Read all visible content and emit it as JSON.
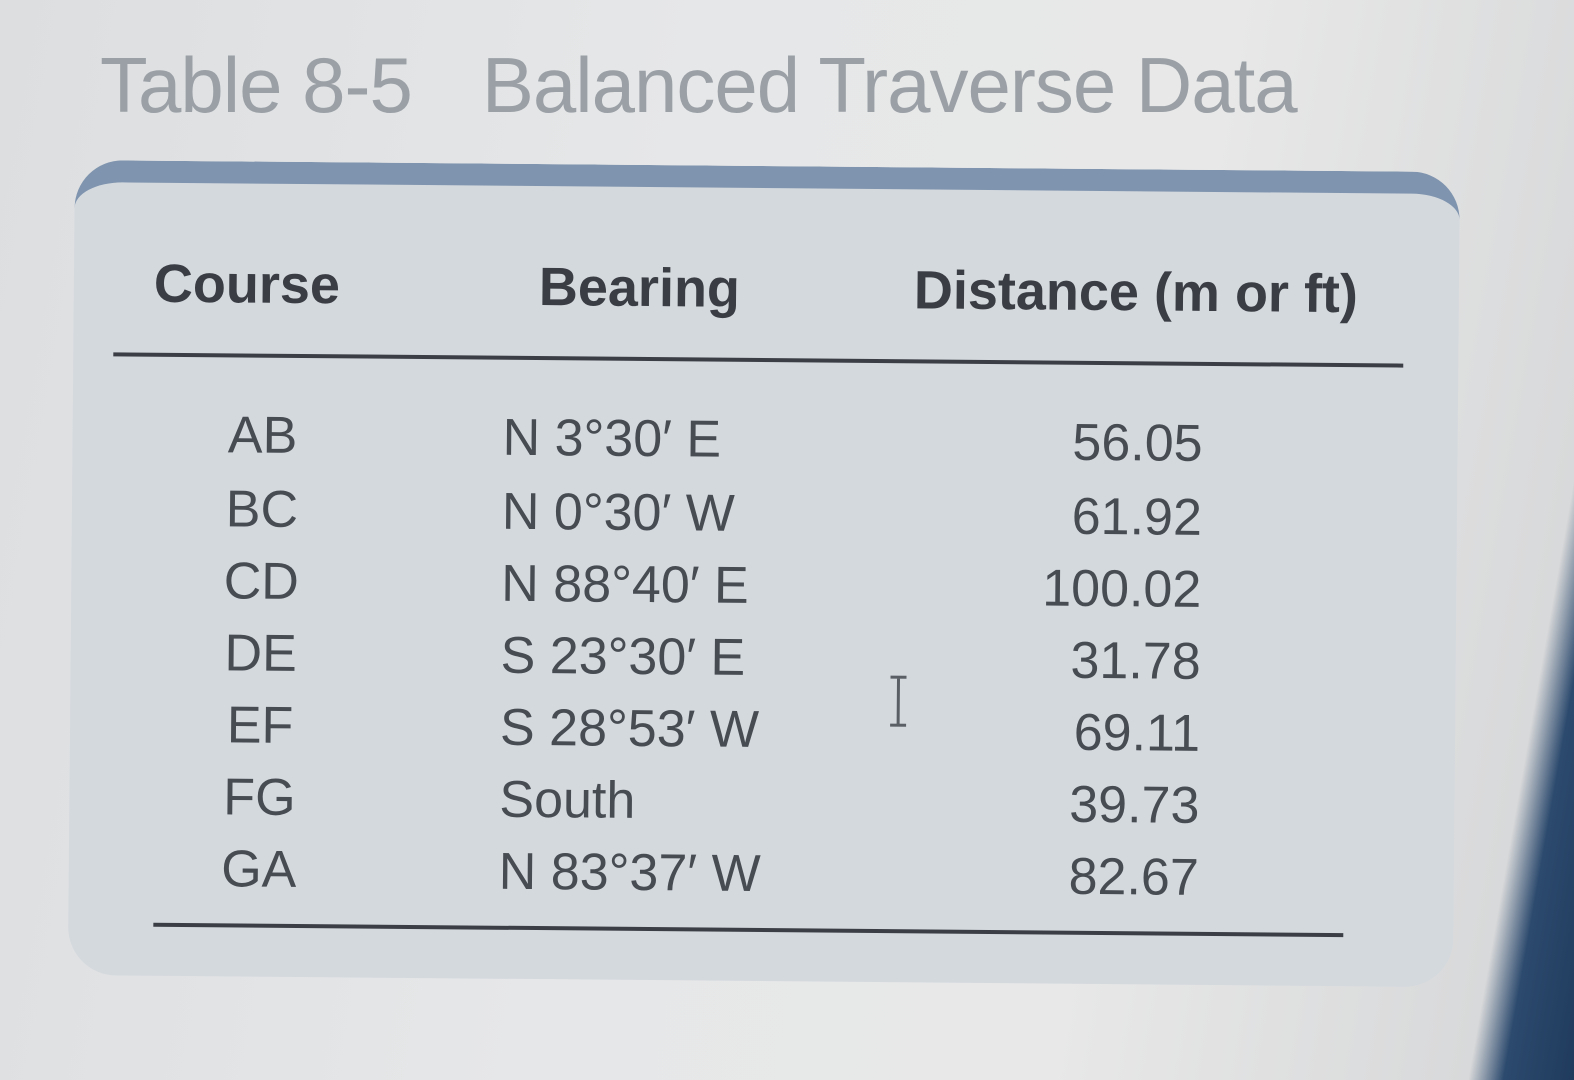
{
  "title": {
    "label": "Table 8-5",
    "text": "Balanced Traverse Data"
  },
  "table": {
    "headers": {
      "course": "Course",
      "bearing": "Bearing",
      "distance": "Distance (m or ft)"
    },
    "rows": [
      {
        "course": "AB",
        "bearing": "N  3°30′ E",
        "distance": "56.05"
      },
      {
        "course": "BC",
        "bearing": "N  0°30′ W",
        "distance": "61.92"
      },
      {
        "course": "CD",
        "bearing": "N 88°40′ E",
        "distance": "100.02"
      },
      {
        "course": "DE",
        "bearing": "S 23°30′ E",
        "distance": "31.78"
      },
      {
        "course": "EF",
        "bearing": "S 28°53′ W",
        "distance": "69.11"
      },
      {
        "course": "FG",
        "bearing": "South",
        "distance": "39.73"
      },
      {
        "course": "GA",
        "bearing": "N 83°37′ W",
        "distance": "82.67"
      }
    ]
  },
  "icons": {
    "cursor": "text-cursor-icon"
  }
}
